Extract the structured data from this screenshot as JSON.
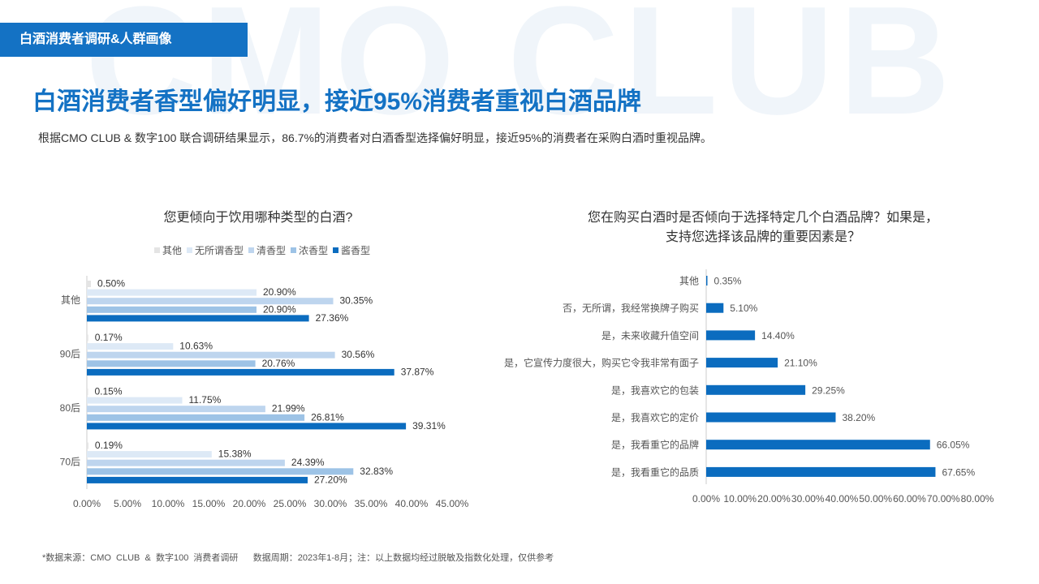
{
  "watermark": "CMO CLUB",
  "section_tag": "白酒消费者调研&人群画像",
  "headline": "白酒消费者香型偏好明显，接近95%消费者重视白酒品牌",
  "subtitle": "根据CMO CLUB & 数字100 联合调研结果显示，86.7%的消费者对白酒香型选择偏好明显，接近95%的消费者在采购白酒时重视品牌。",
  "footnote": "*数据来源：CMO  CLUB  &  数字100  消费者调研      数据周期：2023年1-8月；注：以上数据均经过脱敏及指数化处理，仅供参考",
  "colors": {
    "brand": "#1472c4",
    "series": [
      "#e4e4e4",
      "#dde9f6",
      "#bed5ee",
      "#9dc3e6",
      "#0b6cbf"
    ]
  },
  "chart_data": [
    {
      "type": "bar",
      "orientation": "horizontal",
      "title": "您更倾向于饮用哪种类型的白酒?",
      "categories": [
        "其他",
        "90后",
        "80后",
        "70后"
      ],
      "series": [
        {
          "name": "其他",
          "values": [
            0.5,
            0.17,
            0.15,
            0.19
          ],
          "labels": [
            "0.50%",
            "0.17%",
            "0.15%",
            "0.19%"
          ]
        },
        {
          "name": "无所谓香型",
          "values": [
            20.9,
            10.63,
            11.75,
            15.38
          ],
          "labels": [
            "20.90%",
            "10.63%",
            "11.75%",
            "15.38%"
          ]
        },
        {
          "name": "清香型",
          "values": [
            30.35,
            30.56,
            21.99,
            24.39
          ],
          "labels": [
            "30.35%",
            "30.56%",
            "21.99%",
            "24.39%"
          ]
        },
        {
          "name": "浓香型",
          "values": [
            20.9,
            20.76,
            26.81,
            32.83
          ],
          "labels": [
            "20.90%",
            "20.76%",
            "26.81%",
            "32.83%"
          ]
        },
        {
          "name": "酱香型",
          "values": [
            27.36,
            37.87,
            39.31,
            27.2
          ],
          "labels": [
            "27.36%",
            "37.87%",
            "39.31%",
            "27.20%"
          ]
        }
      ],
      "xlim": [
        0,
        45
      ],
      "ticks": [
        "0.00%",
        "5.00%",
        "10.00%",
        "15.00%",
        "20.00%",
        "25.00%",
        "30.00%",
        "35.00%",
        "40.00%",
        "45.00%"
      ],
      "legend": "top"
    },
    {
      "type": "bar",
      "orientation": "horizontal",
      "title_lines": [
        "您在购买白酒时是否倾向于选择特定几个白酒品牌？如果是，",
        "支持您选择该品牌的重要因素是？"
      ],
      "categories": [
        "其他",
        "否，无所谓，我经常换牌子购买",
        "是，未来收藏升值空间",
        "是，它宣传力度很大，购买它令我非常有面子",
        "是，我喜欢它的包装",
        "是，我喜欢它的定价",
        "是，我看重它的品牌",
        "是，我看重它的品质"
      ],
      "values": [
        0.35,
        5.1,
        14.4,
        21.1,
        29.25,
        38.2,
        66.05,
        67.65
      ],
      "labels": [
        "0.35%",
        "5.10%",
        "14.40%",
        "21.10%",
        "29.25%",
        "38.20%",
        "66.05%",
        "67.65%"
      ],
      "xlim": [
        0,
        80
      ],
      "ticks": [
        "0.00%",
        "10.00%",
        "20.00%",
        "30.00%",
        "40.00%",
        "50.00%",
        "60.00%",
        "70.00%",
        "80.00%"
      ]
    }
  ]
}
